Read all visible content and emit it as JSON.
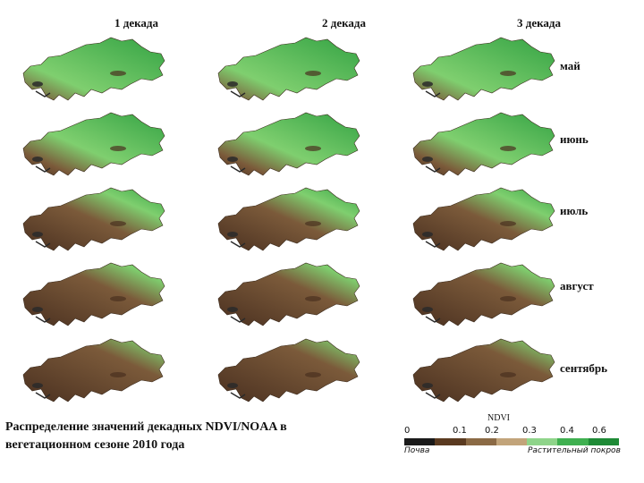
{
  "columns": [
    "1 декада",
    "2 декада",
    "3 декада"
  ],
  "rows": [
    {
      "month": "май",
      "ndvi_level": 0.85
    },
    {
      "month": "июнь",
      "ndvi_level": 0.72
    },
    {
      "month": "июль",
      "ndvi_level": 0.4
    },
    {
      "month": "август",
      "ndvi_level": 0.3
    },
    {
      "month": "сентябрь",
      "ndvi_level": 0.22
    }
  ],
  "caption": "Распределение значений декадных NDVI/NOAA в вегетационном сезоне 2010 года",
  "legend": {
    "title": "NDVI",
    "ticks": [
      "0",
      "0.1",
      "0.2",
      "0.3",
      "0.4",
      "0.6"
    ],
    "left_label": "Почва",
    "right_label": "Растительный покров",
    "colors": [
      "#1a1a1a",
      "#5a3a20",
      "#8b6a45",
      "#c2a47a",
      "#8fd48a",
      "#3fb050",
      "#1e8a36"
    ]
  },
  "palette": {
    "soil_dark": "#4a3020",
    "soil": "#7b5a3a",
    "veg_light": "#7fcf6f",
    "veg": "#34a344",
    "water": "#2a2a2a"
  }
}
